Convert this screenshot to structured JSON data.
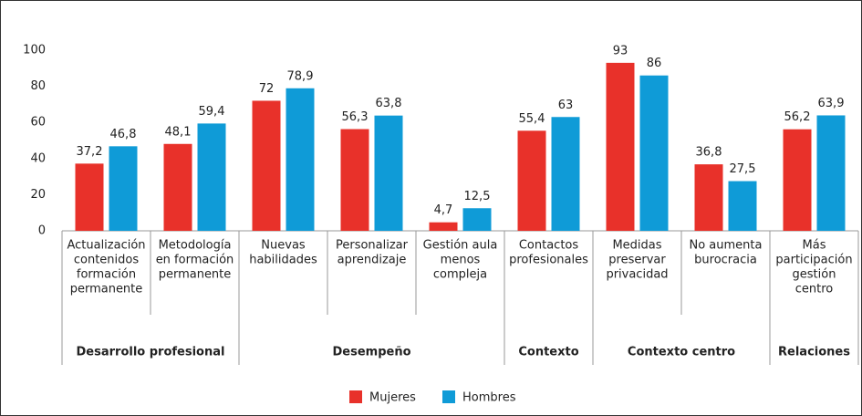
{
  "chart_data": {
    "type": "bar",
    "categories": [
      [
        "Actualización",
        "contenidos",
        "formación",
        "permanente"
      ],
      [
        "Metodología",
        "en formación",
        "permanente"
      ],
      [
        "Nuevas",
        "habilidades"
      ],
      [
        "Personalizar",
        "aprendizaje"
      ],
      [
        "Gestión aula",
        "menos",
        "compleja"
      ],
      [
        "Contactos",
        "profesionales"
      ],
      [
        "Medidas",
        "preservar",
        "privacidad"
      ],
      [
        "No aumenta",
        "burocracia"
      ],
      [
        "Más",
        "participación",
        "gestión",
        "centro"
      ]
    ],
    "groups": [
      {
        "label": "Desarrollo profesional",
        "size": 2
      },
      {
        "label": "Desempeño",
        "size": 3
      },
      {
        "label": "Contexto",
        "size": 1
      },
      {
        "label": "Contexto centro",
        "size": 2
      },
      {
        "label": "Relaciones",
        "size": 1
      }
    ],
    "series": [
      {
        "name": "Mujeres",
        "color": "#e8312a",
        "values": [
          37.2,
          48.1,
          72,
          56.3,
          4.7,
          55.4,
          93,
          36.8,
          56.2
        ],
        "value_labels": [
          "37,2",
          "48,1",
          "72",
          "56,3",
          "4,7",
          "55,4",
          "93",
          "36,8",
          "56,2"
        ]
      },
      {
        "name": "Hombres",
        "color": "#0f9bd7",
        "values": [
          46.8,
          59.4,
          78.9,
          63.8,
          12.5,
          63,
          86,
          27.5,
          63.9
        ],
        "value_labels": [
          "46,8",
          "59,4",
          "78,9",
          "63,8",
          "12,5",
          "63",
          "86",
          "27,5",
          "63,9"
        ]
      }
    ],
    "ylim": [
      0,
      100
    ],
    "yticks": [
      0,
      20,
      40,
      60,
      80,
      100
    ],
    "grid": false,
    "legend": "bottom"
  }
}
